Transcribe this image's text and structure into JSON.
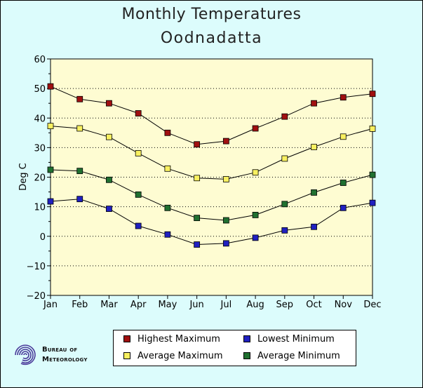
{
  "chart_data": {
    "type": "line",
    "title": "Monthly Temperatures",
    "subtitle": "Oodnadatta",
    "ylabel": "Deg C",
    "xlabel": "",
    "categories": [
      "Jan",
      "Feb",
      "Mar",
      "Apr",
      "May",
      "Jun",
      "Jul",
      "Aug",
      "Sep",
      "Oct",
      "Nov",
      "Dec"
    ],
    "ylim": [
      -20,
      60
    ],
    "yticks": [
      60,
      50,
      40,
      30,
      20,
      10,
      0,
      -10,
      -20
    ],
    "grid": true,
    "legend_position": "bottom",
    "series": [
      {
        "name": "Highest Maximum",
        "color": "#a01010",
        "values": [
          50.7,
          46.4,
          45.0,
          41.6,
          35.0,
          31.1,
          32.2,
          36.5,
          40.5,
          45.0,
          47.0,
          48.2
        ]
      },
      {
        "name": "Average Maximum",
        "color": "#f8f060",
        "values": [
          37.3,
          36.5,
          33.6,
          28.1,
          22.9,
          19.7,
          19.3,
          21.6,
          26.3,
          30.2,
          33.7,
          36.4
        ]
      },
      {
        "name": "Average Minimum",
        "color": "#207030",
        "values": [
          22.5,
          22.1,
          19.1,
          14.1,
          9.6,
          6.2,
          5.4,
          7.2,
          10.9,
          14.8,
          18.1,
          20.8
        ]
      },
      {
        "name": "Lowest Minimum",
        "color": "#2020c0",
        "values": [
          11.8,
          12.6,
          9.3,
          3.5,
          0.6,
          -2.8,
          -2.4,
          -0.5,
          2.0,
          3.2,
          9.6,
          11.3
        ]
      }
    ]
  },
  "logo": {
    "line1": "Bureau of",
    "line2": "Meteorology"
  }
}
